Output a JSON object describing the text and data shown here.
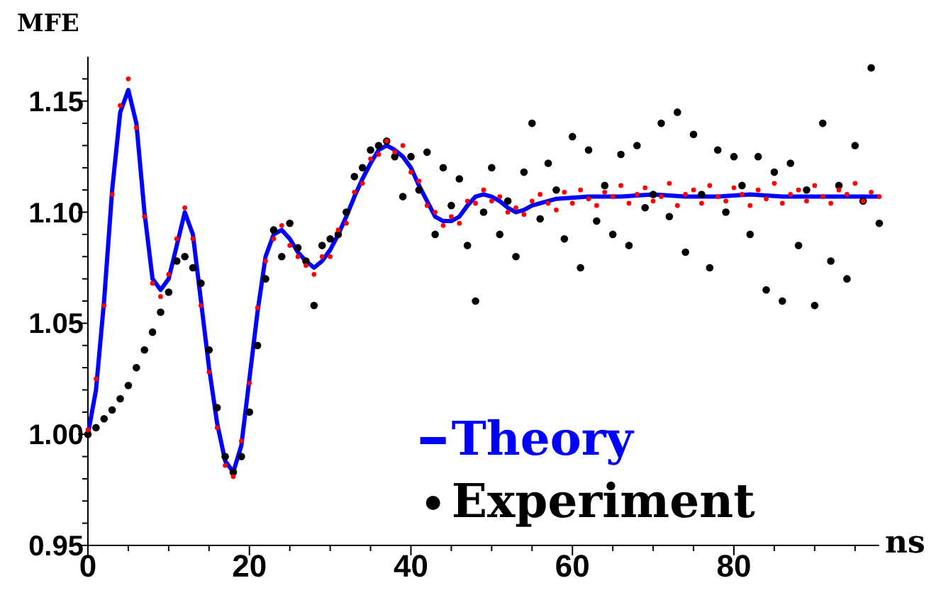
{
  "chart_data": {
    "type": "scatter",
    "ylabel": "MFE",
    "xlabel": "ns",
    "xlim": [
      0,
      98
    ],
    "ylim": [
      0.95,
      1.17
    ],
    "xticks": [
      0,
      {
        "value": 5,
        "label": null
      },
      {
        "value": 10,
        "label": null
      },
      {
        "value": 15,
        "label": null
      },
      20,
      {
        "value": 25,
        "label": null
      },
      {
        "value": 30,
        "label": null
      },
      {
        "value": 35,
        "label": null
      },
      40,
      {
        "value": 45,
        "label": null
      },
      {
        "value": 50,
        "label": null
      },
      {
        "value": 55,
        "label": null
      },
      60,
      {
        "value": 65,
        "label": null
      },
      {
        "value": 70,
        "label": null
      },
      {
        "value": 75,
        "label": null
      },
      80,
      {
        "value": 85,
        "label": null
      },
      {
        "value": 90,
        "label": null
      },
      {
        "value": 95,
        "label": null
      }
    ],
    "yticks": [
      {
        "value": 0.95,
        "label": "0.95"
      },
      {
        "value": 0.96,
        "label": null
      },
      {
        "value": 0.97,
        "label": null
      },
      {
        "value": 0.98,
        "label": null
      },
      {
        "value": 0.99,
        "label": null
      },
      {
        "value": 1.0,
        "label": "1.00"
      },
      {
        "value": 1.01,
        "label": null
      },
      {
        "value": 1.02,
        "label": null
      },
      {
        "value": 1.03,
        "label": null
      },
      {
        "value": 1.04,
        "label": null
      },
      {
        "value": 1.05,
        "label": "1.05"
      },
      {
        "value": 1.06,
        "label": null
      },
      {
        "value": 1.07,
        "label": null
      },
      {
        "value": 1.08,
        "label": null
      },
      {
        "value": 1.09,
        "label": null
      },
      {
        "value": 1.1,
        "label": "1.10"
      },
      {
        "value": 1.11,
        "label": null
      },
      {
        "value": 1.12,
        "label": null
      },
      {
        "value": 1.13,
        "label": null
      },
      {
        "value": 1.14,
        "label": null
      },
      {
        "value": 1.15,
        "label": "1.15"
      },
      {
        "value": 1.16,
        "label": null
      }
    ],
    "grid": false,
    "legend": "bottom right",
    "series": [
      {
        "name": "Experiment",
        "marker": "circle",
        "color": "#000000",
        "x": [
          0,
          1,
          2,
          3,
          4,
          5,
          6,
          7,
          8,
          9,
          10,
          11,
          12,
          13,
          14,
          15,
          16,
          17,
          18,
          19,
          20,
          21,
          22,
          23,
          24,
          25,
          26,
          27,
          28,
          29,
          30,
          31,
          32,
          33,
          34,
          35,
          36,
          37,
          38,
          39,
          40,
          41,
          42,
          43,
          44,
          45,
          46,
          47,
          48,
          49,
          50,
          51,
          52,
          53,
          54,
          55,
          56,
          57,
          58,
          59,
          60,
          61,
          62,
          63,
          64,
          65,
          66,
          67,
          68,
          69,
          70,
          71,
          72,
          73,
          74,
          75,
          76,
          77,
          78,
          79,
          80,
          81,
          82,
          83,
          84,
          85,
          86,
          87,
          88,
          89,
          90,
          91,
          92,
          93,
          94,
          95,
          96,
          97,
          98
        ],
        "values": [
          1.0,
          1.003,
          1.007,
          1.011,
          1.016,
          1.022,
          1.03,
          1.038,
          1.046,
          1.055,
          1.064,
          1.078,
          1.08,
          1.075,
          1.068,
          1.038,
          1.012,
          0.99,
          0.983,
          0.99,
          1.01,
          1.04,
          1.07,
          1.092,
          1.08,
          1.095,
          1.084,
          1.078,
          1.058,
          1.085,
          1.088,
          1.09,
          1.1,
          1.116,
          1.12,
          1.128,
          1.13,
          1.132,
          1.125,
          1.107,
          1.125,
          1.11,
          1.127,
          1.09,
          1.12,
          1.103,
          1.115,
          1.085,
          1.06,
          1.1,
          1.12,
          1.09,
          1.105,
          1.08,
          1.118,
          1.14,
          1.097,
          1.122,
          1.11,
          1.088,
          1.134,
          1.075,
          1.128,
          1.096,
          1.112,
          1.09,
          1.126,
          1.085,
          1.13,
          1.102,
          1.108,
          1.14,
          1.098,
          1.145,
          1.082,
          1.135,
          1.108,
          1.075,
          1.128,
          1.1,
          1.125,
          1.112,
          1.09,
          1.125,
          1.065,
          1.118,
          1.06,
          1.122,
          1.085,
          1.11,
          1.058,
          1.14,
          1.078,
          1.112,
          1.07,
          1.13,
          1.105,
          1.165,
          1.095
        ]
      },
      {
        "marker": "circle",
        "color": "#ff0000",
        "x": [
          0,
          1,
          2,
          3,
          4,
          5,
          6,
          7,
          8,
          9,
          10,
          11,
          12,
          13,
          14,
          15,
          16,
          17,
          18,
          19,
          20,
          21,
          22,
          23,
          24,
          25,
          26,
          27,
          28,
          29,
          30,
          31,
          32,
          33,
          34,
          35,
          36,
          37,
          38,
          39,
          40,
          41,
          42,
          43,
          44,
          45,
          46,
          47,
          48,
          49,
          50,
          51,
          52,
          53,
          54,
          55,
          56,
          57,
          58,
          59,
          60,
          61,
          62,
          63,
          64,
          65,
          66,
          67,
          68,
          69,
          70,
          71,
          72,
          73,
          74,
          75,
          76,
          77,
          78,
          79,
          80,
          81,
          82,
          83,
          84,
          85,
          86,
          87,
          88,
          89,
          90,
          91,
          92,
          93,
          94,
          95,
          96,
          97,
          98
        ],
        "values": [
          1.002,
          1.025,
          1.058,
          1.108,
          1.148,
          1.16,
          1.138,
          1.098,
          1.068,
          1.062,
          1.072,
          1.088,
          1.102,
          1.088,
          1.058,
          1.028,
          1.003,
          0.986,
          0.981,
          0.997,
          1.023,
          1.057,
          1.078,
          1.088,
          1.094,
          1.085,
          1.08,
          1.076,
          1.072,
          1.08,
          1.08,
          1.092,
          1.095,
          1.109,
          1.113,
          1.124,
          1.126,
          1.132,
          1.127,
          1.13,
          1.118,
          1.114,
          1.103,
          1.1,
          1.094,
          1.098,
          1.095,
          1.105,
          1.104,
          1.11,
          1.105,
          1.107,
          1.1,
          1.102,
          1.099,
          1.105,
          1.108,
          1.104,
          1.101,
          1.109,
          1.104,
          1.11,
          1.106,
          1.103,
          1.109,
          1.107,
          1.112,
          1.104,
          1.108,
          1.111,
          1.105,
          1.107,
          1.113,
          1.103,
          1.108,
          1.11,
          1.104,
          1.112,
          1.107,
          1.105,
          1.111,
          1.108,
          1.103,
          1.11,
          1.106,
          1.113,
          1.104,
          1.108,
          1.11,
          1.105,
          1.112,
          1.107,
          1.104,
          1.11,
          1.108,
          1.113,
          1.105,
          1.109,
          1.107
        ]
      },
      {
        "type": "line",
        "name": "Theory",
        "color": "#0000ff",
        "x": [
          0,
          1,
          2,
          3,
          4,
          5,
          6,
          7,
          8,
          9,
          10,
          11,
          12,
          13,
          14,
          15,
          16,
          17,
          18,
          19,
          20,
          21,
          22,
          23,
          24,
          25,
          26,
          27,
          28,
          29,
          30,
          31,
          32,
          33,
          34,
          35,
          36,
          37,
          38,
          39,
          40,
          41,
          42,
          43,
          44,
          45,
          46,
          47,
          48,
          49,
          50,
          51,
          52,
          53,
          54,
          55,
          58,
          62,
          66,
          70,
          74,
          78,
          82,
          86,
          90,
          94,
          98
        ],
        "values": [
          1.0,
          1.02,
          1.06,
          1.11,
          1.145,
          1.155,
          1.14,
          1.1,
          1.07,
          1.065,
          1.07,
          1.085,
          1.1,
          1.09,
          1.06,
          1.03,
          1.005,
          0.988,
          0.983,
          0.995,
          1.025,
          1.055,
          1.08,
          1.09,
          1.092,
          1.088,
          1.082,
          1.078,
          1.075,
          1.078,
          1.083,
          1.09,
          1.098,
          1.107,
          1.115,
          1.122,
          1.128,
          1.13,
          1.128,
          1.125,
          1.12,
          1.112,
          1.105,
          1.098,
          1.096,
          1.096,
          1.098,
          1.103,
          1.107,
          1.108,
          1.107,
          1.105,
          1.102,
          1.1,
          1.101,
          1.103,
          1.106,
          1.107,
          1.107,
          1.108,
          1.107,
          1.107,
          1.108,
          1.107,
          1.107,
          1.107,
          1.107
        ]
      }
    ]
  }
}
